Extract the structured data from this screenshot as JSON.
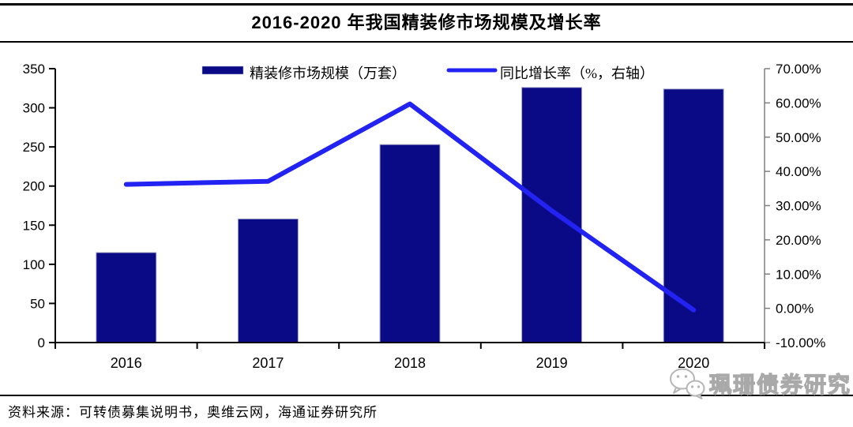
{
  "header": {
    "title": "2016-2020 年我国精装修市场规模及增长率"
  },
  "footer": {
    "source": "资料来源：可转债募集说明书，奥维云网，海通证券研究所",
    "watermark": "珮珊债券研究"
  },
  "colors": {
    "bar": "#0a0a87",
    "bar_edge": "#a9a9c8",
    "line": "#2222f2",
    "left_axis": "#000000",
    "right_axis": "#7f7f7f",
    "text": "#000000",
    "watermark_outline": "#a9a9a9"
  },
  "chart_data": {
    "type": "bar",
    "title": "2016-2020 年我国精装修市场规模及增长率",
    "categories": [
      "2016",
      "2017",
      "2018",
      "2019",
      "2020"
    ],
    "series": [
      {
        "name": "精装修市场规模（万套）",
        "type": "bar",
        "axis": "left",
        "values": [
          115,
          158,
          253,
          326,
          324
        ]
      },
      {
        "name": "同比增长率（%，右轴）",
        "type": "line",
        "axis": "right",
        "values": [
          36.2,
          37.1,
          59.7,
          28.5,
          -0.5
        ]
      }
    ],
    "left_axis": {
      "min": 0,
      "max": 350,
      "step": 50,
      "tick_labels": [
        "0",
        "50",
        "100",
        "150",
        "200",
        "250",
        "300",
        "350"
      ]
    },
    "right_axis": {
      "min": -10,
      "max": 70,
      "step": 10,
      "tick_labels": [
        "-10.00%",
        "0.00%",
        "10.00%",
        "20.00%",
        "30.00%",
        "40.00%",
        "50.00%",
        "60.00%",
        "70.00%"
      ]
    },
    "legend_position": "top",
    "grid": false
  }
}
